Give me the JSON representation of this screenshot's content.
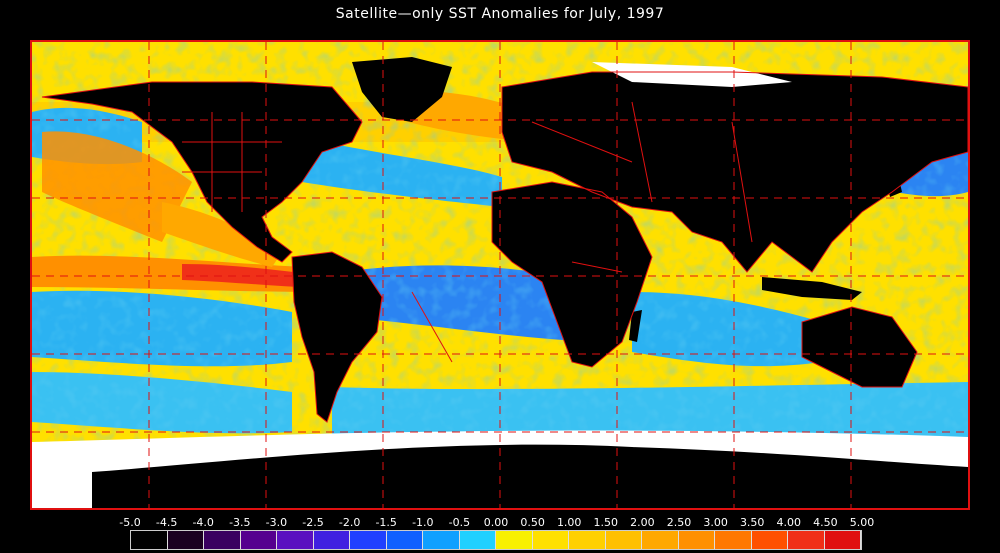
{
  "title": "Satellite—only SST Anomalies for July, 1997",
  "legend": {
    "ticks": [
      "-5.0",
      "-4.5",
      "-4.0",
      "-3.5",
      "-3.0",
      "-2.5",
      "-2.0",
      "-1.5",
      "-1.0",
      "-0.5",
      "0.00",
      "0.50",
      "1.00",
      "1.50",
      "2.00",
      "2.50",
      "3.00",
      "3.50",
      "4.00",
      "4.50",
      "5.00"
    ],
    "colors": [
      "#000000",
      "#1a0020",
      "#3a0060",
      "#55008f",
      "#5a10c0",
      "#4020e0",
      "#2040ff",
      "#1060ff",
      "#10a0ff",
      "#20d0ff",
      "#f8f000",
      "#ffe000",
      "#ffd000",
      "#ffc000",
      "#ffa800",
      "#ff9000",
      "#ff7800",
      "#ff5000",
      "#f03018",
      "#e01010"
    ]
  },
  "map": {
    "ocean_neutral": "#ffe000",
    "cool": "#2090ff",
    "cold": "#1040ff",
    "warm": "#ff9000",
    "hot": "#f03018",
    "land": "#000000",
    "ice": "#ffffff",
    "grid_color": "#e01010"
  }
}
